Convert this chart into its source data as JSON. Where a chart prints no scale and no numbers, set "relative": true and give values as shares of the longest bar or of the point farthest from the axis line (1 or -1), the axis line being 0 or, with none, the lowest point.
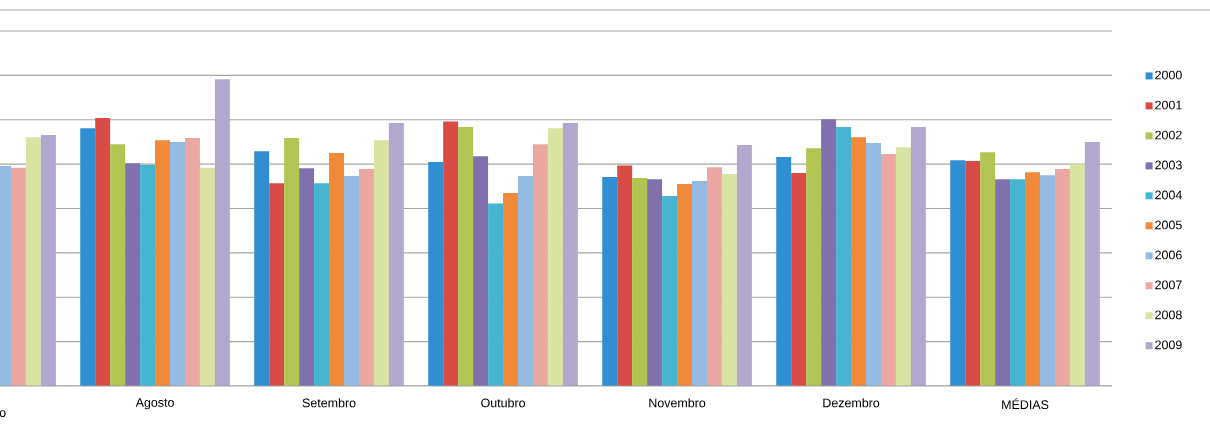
{
  "chart_data": {
    "type": "bar",
    "relative": true,
    "grid": true,
    "legend": "right",
    "categories": [
      "o",
      "Agosto",
      "Setembro",
      "Outubro",
      "Novembro",
      "Dezembro",
      "MÉDIAS"
    ],
    "series": [
      {
        "name": "2000",
        "color": "#2f8fd2",
        "values": [
          null,
          0.84,
          0.765,
          0.73,
          0.681,
          0.746,
          0.736
        ]
      },
      {
        "name": "2001",
        "color": "#d94b45",
        "values": [
          null,
          0.873,
          0.661,
          0.862,
          0.719,
          0.694,
          0.733
        ]
      },
      {
        "name": "2002",
        "color": "#b2c553",
        "values": [
          null,
          0.788,
          0.808,
          0.844,
          0.678,
          0.775,
          0.762
        ]
      },
      {
        "name": "2003",
        "color": "#8070ae",
        "values": [
          null,
          0.726,
          0.71,
          0.749,
          0.674,
          0.869,
          0.674
        ]
      },
      {
        "name": "2004",
        "color": "#45b5d2",
        "values": [
          null,
          0.72,
          0.661,
          0.595,
          0.619,
          0.844,
          0.674
        ]
      },
      {
        "name": "2005",
        "color": "#f08a38",
        "values": [
          null,
          0.801,
          0.759,
          0.629,
          0.658,
          0.811,
          0.697
        ]
      },
      {
        "name": "2006",
        "color": "#93bbe1",
        "values": [
          0.717,
          0.795,
          0.684,
          0.684,
          0.668,
          0.792,
          0.687
        ]
      },
      {
        "name": "2007",
        "color": "#eba7a2",
        "values": [
          0.711,
          0.808,
          0.707,
          0.788,
          0.713,
          0.756,
          0.707
        ]
      },
      {
        "name": "2008",
        "color": "#d9e3a2",
        "values": [
          0.811,
          0.711,
          0.801,
          0.84,
          0.691,
          0.778,
          0.723
        ]
      },
      {
        "name": "2009",
        "color": "#b2a8cf",
        "values": [
          0.818,
          1,
          0.857,
          0.857,
          0.785,
          0.844,
          0.795
        ]
      }
    ]
  }
}
